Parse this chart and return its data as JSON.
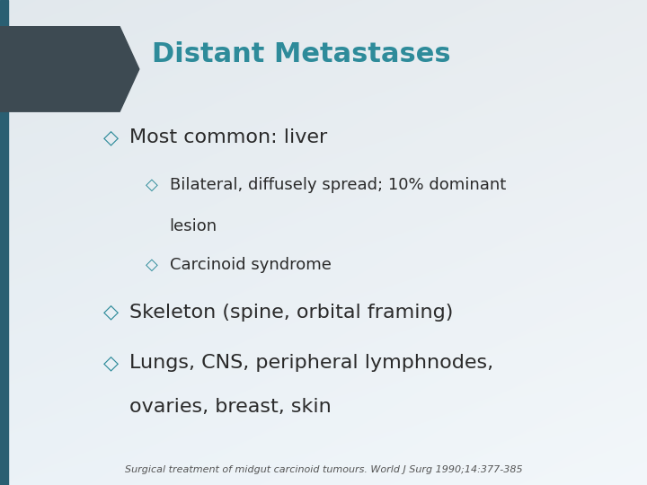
{
  "title": "Distant Metastases",
  "title_color": "#2E8B9A",
  "title_fontsize": 22,
  "bullet_color": "#2E8B9A",
  "text_color": "#2a2a2a",
  "footnote": "Surgical treatment of midgut carcinoid tumours. World J Surg 1990;14:377-385",
  "footnote_fontsize": 8,
  "footnote_color": "#555555",
  "diamond": "◇",
  "dark_box_color": "#3d4a52",
  "teal_bar_color": "#2a5f72",
  "bullet1": "Most common: liver",
  "bullet1_fontsize": 16,
  "bullet2a_line1": "Bilateral, diffusely spread; 10% dominant",
  "bullet2a_line2": "lesion",
  "bullet2b": "Carcinoid syndrome",
  "sub_fontsize": 13,
  "bullet3": "Skeleton (spine, orbital framing)",
  "bullet4a": "Lungs, CNS, peripheral lymphnodes,",
  "bullet4b": "ovaries, breast, skin",
  "bullet34_fontsize": 16
}
